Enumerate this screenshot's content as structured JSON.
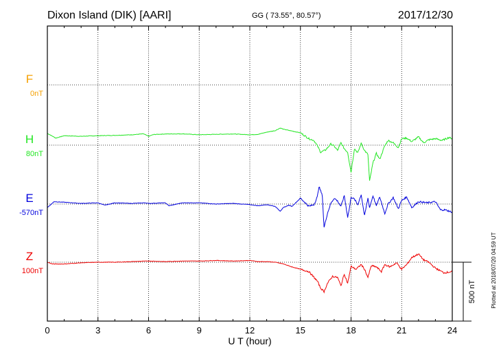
{
  "chart_data": {
    "type": "line",
    "title": "Dixon Island (DIK)  [AARI]",
    "coords": "GG ( 73.55°,  80.57°)",
    "date": "2017/12/30",
    "xlabel": "U T (hour)",
    "xlim": [
      0,
      24
    ],
    "xticks": [
      "0",
      "3",
      "6",
      "9",
      "12",
      "15",
      "18",
      "21",
      "24"
    ],
    "grid": true,
    "scale_bar_label": "500 nT",
    "scale_bar_nT": 500,
    "plotted_note": "Plotted at 2018/07/20 04:59 UT",
    "series": [
      {
        "name": "F",
        "base_label": "0nT",
        "color": "#f5a000",
        "nT_at_baseline": 0,
        "x": [],
        "y": []
      },
      {
        "name": "H",
        "base_label": "80nT",
        "color": "#22e622",
        "nT_at_baseline": 80,
        "x": [
          0,
          0.5,
          1,
          2,
          3,
          4,
          5,
          5.7,
          6,
          6.3,
          7,
          8,
          9,
          10,
          11,
          12,
          12.5,
          13,
          13.5,
          13.8,
          14,
          14.5,
          15,
          15.5,
          15.8,
          16,
          16.2,
          16.5,
          16.8,
          17,
          17.2,
          17.4,
          17.6,
          17.8,
          18,
          18.2,
          18.4,
          18.6,
          18.8,
          19,
          19.1,
          19.3,
          19.5,
          19.7,
          20,
          20.2,
          20.5,
          20.8,
          21,
          21.3,
          21.6,
          22,
          22.3,
          22.6,
          23,
          23.4,
          23.8,
          24
        ],
        "y": [
          100,
          60,
          80,
          75,
          80,
          83,
          88,
          96,
          75,
          90,
          95,
          96,
          88,
          92,
          95,
          88,
          92,
          110,
          123,
          145,
          135,
          120,
          105,
          55,
          40,
          -5,
          -60,
          -40,
          10,
          -8,
          -45,
          20,
          -30,
          -60,
          -230,
          -30,
          -65,
          15,
          -45,
          -80,
          -305,
          -150,
          -70,
          -120,
          -5,
          40,
          20,
          -20,
          55,
          60,
          30,
          70,
          20,
          45,
          55,
          40,
          65,
          55
        ]
      },
      {
        "name": "E",
        "base_label": "-570nT",
        "color": "#0000dd",
        "nT_at_baseline": -570,
        "x": [
          0,
          0.4,
          1,
          2,
          3,
          3.4,
          4,
          5,
          5.8,
          6,
          7,
          7.2,
          8,
          9,
          10,
          11,
          12,
          12.5,
          13,
          13.5,
          13.8,
          14,
          14.3,
          14.5,
          15,
          15.5,
          15.8,
          16,
          16.1,
          16.3,
          16.4,
          16.6,
          16.8,
          17,
          17.2,
          17.4,
          17.6,
          17.8,
          17.9,
          18,
          18.2,
          18.4,
          18.6,
          18.8,
          19,
          19.1,
          19.3,
          19.5,
          19.7,
          20,
          20.2,
          20.5,
          20.8,
          21,
          21.3,
          21.6,
          22,
          22.5,
          23,
          23.3,
          23.6,
          24
        ],
        "y": [
          -30,
          20,
          15,
          5,
          10,
          -10,
          10,
          5,
          10,
          5,
          10,
          -15,
          10,
          10,
          0,
          5,
          -5,
          -15,
          -5,
          -20,
          -60,
          -30,
          -10,
          -20,
          50,
          -20,
          -5,
          60,
          150,
          70,
          -200,
          -80,
          5,
          50,
          25,
          -20,
          70,
          -110,
          -40,
          60,
          40,
          -5,
          80,
          -100,
          50,
          -30,
          70,
          -15,
          60,
          -80,
          0,
          55,
          -40,
          30,
          60,
          -30,
          20,
          10,
          20,
          -50,
          -50,
          -70
        ]
      },
      {
        "name": "Z",
        "base_label": "100nT",
        "color": "#ee0000",
        "nT_at_baseline": 100,
        "x": [
          0,
          0.3,
          1,
          2,
          3,
          4,
          5,
          6,
          7,
          8,
          9,
          10,
          11,
          12,
          12.5,
          13,
          13.5,
          14,
          14.5,
          15,
          15.5,
          16,
          16.2,
          16.4,
          16.6,
          16.9,
          17.2,
          17.4,
          17.6,
          17.8,
          18,
          18.3,
          18.6,
          18.8,
          19,
          19.2,
          19.5,
          19.8,
          20,
          20.3,
          20.7,
          21,
          21.3,
          21.6,
          22,
          22.3,
          22.6,
          23,
          23.5,
          24
        ],
        "y": [
          0,
          -15,
          -15,
          -5,
          0,
          0,
          5,
          10,
          5,
          10,
          10,
          15,
          10,
          15,
          5,
          5,
          0,
          -15,
          -40,
          -60,
          -80,
          -160,
          -220,
          -250,
          -180,
          -120,
          -130,
          -200,
          -100,
          -180,
          -35,
          -60,
          -20,
          -60,
          -130,
          -30,
          -40,
          -80,
          -20,
          -40,
          -5,
          -60,
          -20,
          40,
          70,
          20,
          0,
          -50,
          -90,
          -80
        ]
      }
    ]
  }
}
